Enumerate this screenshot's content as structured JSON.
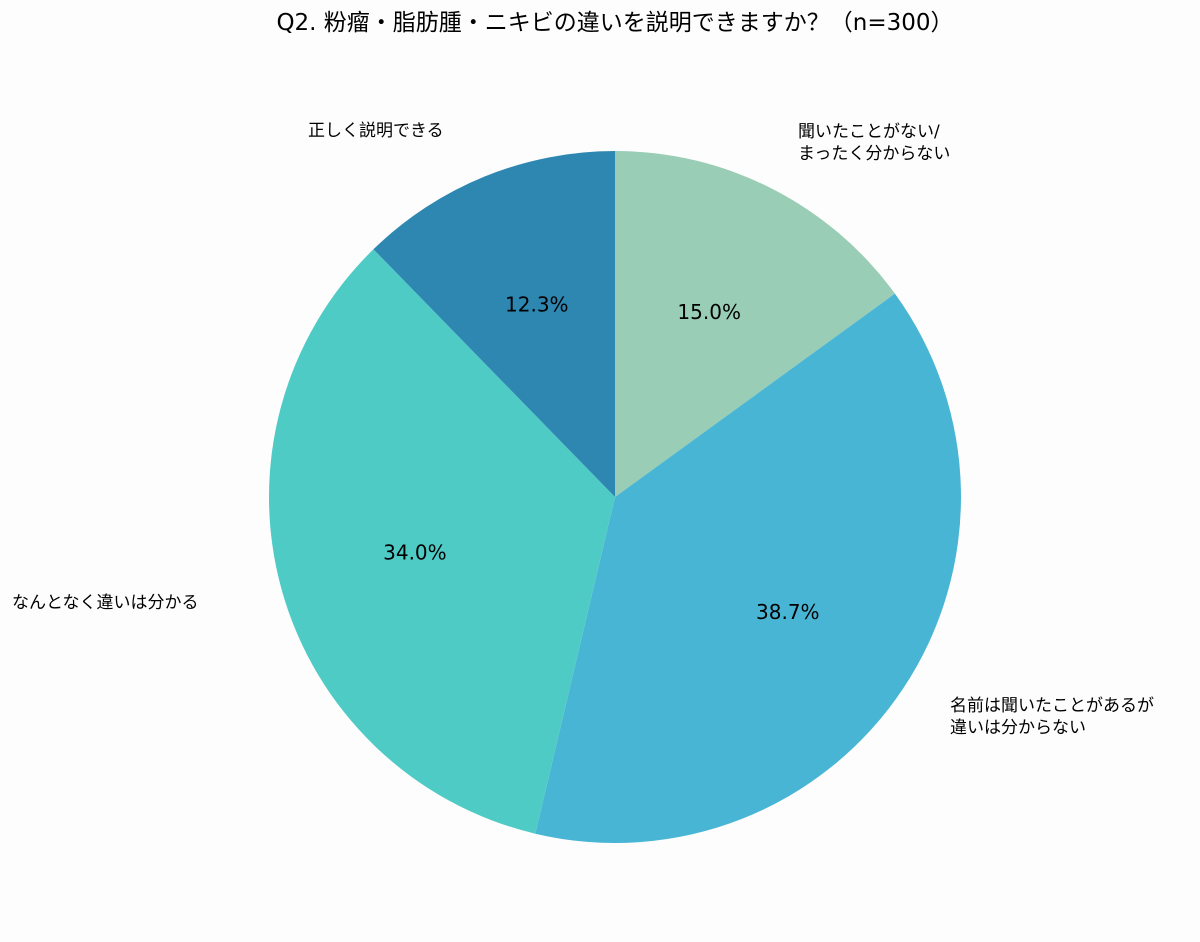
{
  "chart_data": {
    "type": "pie",
    "title": "Q2. 粉瘤・脂肪腫・ニキビの違いを説明できますか？（n=300）",
    "slices": [
      {
        "label": "聞いたことがない/\nまったく分からない",
        "label_lines": [
          "聞いたことがない/",
          "まったく分からない"
        ],
        "value": 15.0,
        "value_label": "15.0%",
        "color": "#99cdb5"
      },
      {
        "label": "名前は聞いたことがあるが\n違いは分からない",
        "label_lines": [
          "名前は聞いたことがあるが",
          "違いは分からない"
        ],
        "value": 38.7,
        "value_label": "38.7%",
        "color": "#49b5d4"
      },
      {
        "label": "なんとなく違いは分かる",
        "label_lines": [
          "なんとなく違いは分かる"
        ],
        "value": 34.0,
        "value_label": "34.0%",
        "color": "#4fcbc6"
      },
      {
        "label": "正しく説明できる",
        "label_lines": [
          "正しく説明できる"
        ],
        "value": 12.3,
        "value_label": "12.3%",
        "color": "#2e87b1"
      }
    ],
    "start_angle": "12 o'clock",
    "direction": "clockwise",
    "legend": "none"
  }
}
